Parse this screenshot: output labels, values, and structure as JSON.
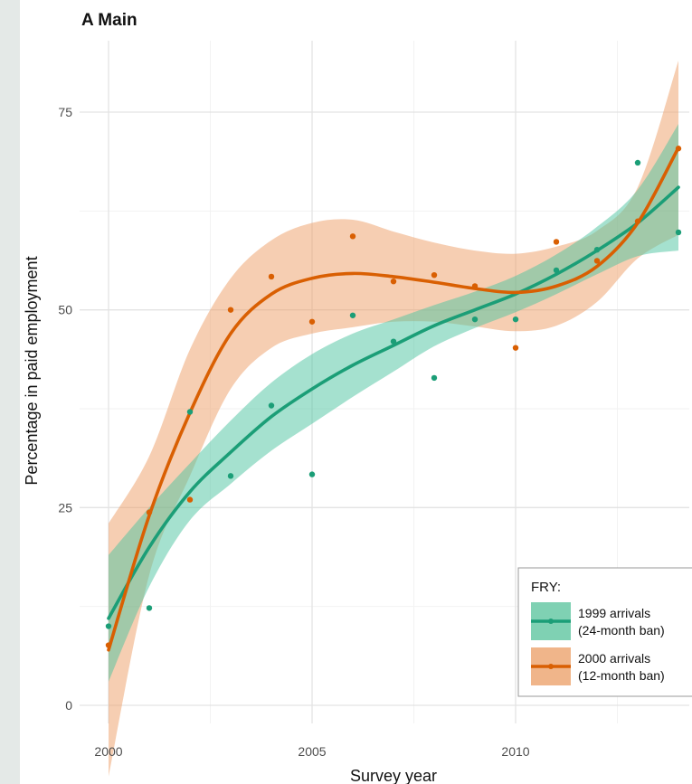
{
  "panel_title": "A Main",
  "chart_data": {
    "type": "scatter",
    "title": "A Main",
    "xlabel": "Survey year",
    "ylabel": "Percentage in paid employment",
    "xlim": [
      2000,
      2014
    ],
    "ylim": [
      0,
      80
    ],
    "x_ticks": [
      2000,
      2005,
      2010
    ],
    "y_ticks": [
      0,
      25,
      50,
      75
    ],
    "grid": true,
    "legend": {
      "title": "FRY:",
      "position": "bottom-right",
      "entries": [
        {
          "line1": "1999 arrivals",
          "line2": "(24-month ban)",
          "color": "#1b9e77",
          "fill": "#7fd1b3"
        },
        {
          "line1": "2000 arrivals",
          "line2": "(12-month ban)",
          "color": "#d95f02",
          "fill": "#f0b58a"
        }
      ]
    },
    "series": [
      {
        "name": "1999 arrivals (24-month ban)",
        "color": "#1b9e77",
        "band_color": "#4cc39f",
        "points": [
          [
            2000,
            10.0
          ],
          [
            2001,
            12.3
          ],
          [
            2002,
            37.1
          ],
          [
            2003,
            29.0
          ],
          [
            2004,
            37.9
          ],
          [
            2005,
            29.2
          ],
          [
            2006,
            49.3
          ],
          [
            2007,
            46.0
          ],
          [
            2008,
            41.4
          ],
          [
            2009,
            48.8
          ],
          [
            2010,
            48.8
          ],
          [
            2011,
            55.0
          ],
          [
            2012,
            57.6
          ],
          [
            2013,
            68.6
          ],
          [
            2014,
            59.8
          ]
        ],
        "smooth": [
          [
            2000,
            11.0
          ],
          [
            2001,
            20.0
          ],
          [
            2002,
            27.0
          ],
          [
            2003,
            32.0
          ],
          [
            2004,
            36.5
          ],
          [
            2005,
            40.0
          ],
          [
            2006,
            43.0
          ],
          [
            2007,
            45.5
          ],
          [
            2008,
            48.0
          ],
          [
            2009,
            50.0
          ],
          [
            2010,
            52.0
          ],
          [
            2011,
            54.5
          ],
          [
            2012,
            57.5
          ],
          [
            2013,
            61.0
          ],
          [
            2014,
            65.5
          ]
        ],
        "band_half_width": [
          8.0,
          5.0,
          3.6,
          4.0,
          4.3,
          4.4,
          4.0,
          3.3,
          2.6,
          2.3,
          2.3,
          2.5,
          3.0,
          4.2,
          8.0
        ]
      },
      {
        "name": "2000 arrivals (12-month ban)",
        "color": "#d95f02",
        "band_color": "#ee9e66",
        "points": [
          [
            2000,
            7.6
          ],
          [
            2001,
            24.4
          ],
          [
            2002,
            26.0
          ],
          [
            2003,
            50.0
          ],
          [
            2004,
            54.2
          ],
          [
            2005,
            48.5
          ],
          [
            2006,
            59.3
          ],
          [
            2007,
            53.6
          ],
          [
            2008,
            54.4
          ],
          [
            2009,
            53.0
          ],
          [
            2010,
            45.2
          ],
          [
            2011,
            58.6
          ],
          [
            2012,
            56.2
          ],
          [
            2013,
            61.2
          ],
          [
            2014,
            70.4
          ]
        ],
        "smooth": [
          [
            2000,
            7.0
          ],
          [
            2001,
            24.0
          ],
          [
            2002,
            37.0
          ],
          [
            2003,
            47.0
          ],
          [
            2004,
            52.0
          ],
          [
            2005,
            54.0
          ],
          [
            2006,
            54.6
          ],
          [
            2007,
            54.2
          ],
          [
            2008,
            53.5
          ],
          [
            2009,
            52.7
          ],
          [
            2010,
            52.2
          ],
          [
            2011,
            53.0
          ],
          [
            2012,
            55.5
          ],
          [
            2013,
            61.0
          ],
          [
            2014,
            70.5
          ]
        ],
        "band_half_width": [
          16.0,
          7.5,
          8.0,
          7.0,
          6.8,
          7.0,
          6.8,
          5.7,
          5.0,
          4.8,
          4.9,
          5.0,
          4.5,
          4.5,
          11.0
        ]
      }
    ]
  }
}
